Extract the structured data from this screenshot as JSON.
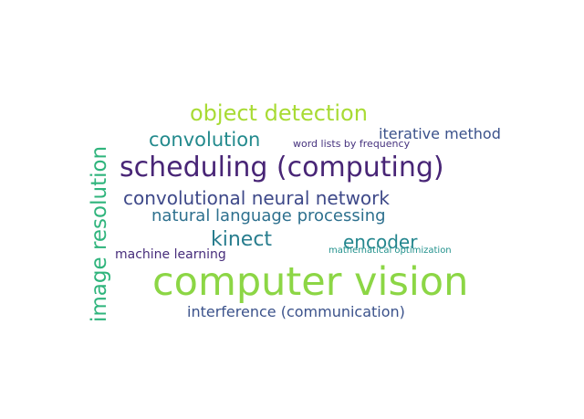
{
  "word_cloud": {
    "words": [
      {
        "text": "computer vision",
        "color": "#8cd645"
      },
      {
        "text": "scheduling (computing)",
        "color": "#482576"
      },
      {
        "text": "image resolution",
        "color": "#2fb47c"
      },
      {
        "text": "object detection",
        "color": "#a8db34"
      },
      {
        "text": "convolutional neural network",
        "color": "#3e4989"
      },
      {
        "text": "natural language processing",
        "color": "#2d708e"
      },
      {
        "text": "convolution",
        "color": "#238a8d"
      },
      {
        "text": "kinect",
        "color": "#287d8e"
      },
      {
        "text": "encoder",
        "color": "#24868e"
      },
      {
        "text": "interference (communication)",
        "color": "#3b528b"
      },
      {
        "text": "iterative method",
        "color": "#3b528b"
      },
      {
        "text": "machine learning",
        "color": "#472d7b"
      },
      {
        "text": "word lists by frequency",
        "color": "#46327e"
      },
      {
        "text": "mathematical optimization",
        "color": "#21918c"
      }
    ]
  }
}
